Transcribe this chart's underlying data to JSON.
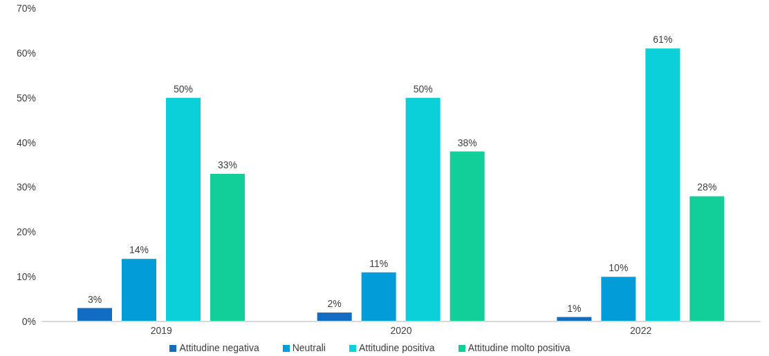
{
  "chart_data": {
    "type": "bar",
    "categories": [
      "2019",
      "2020",
      "2022"
    ],
    "series": [
      {
        "name": "Attitudine negativa",
        "color": "#116cc4",
        "values": [
          3,
          2,
          1
        ],
        "value_labels": [
          "3%",
          "2%",
          "1%"
        ]
      },
      {
        "name": "Neutrali",
        "color": "#029dd8",
        "values": [
          14,
          11,
          10
        ],
        "value_labels": [
          "14%",
          "11%",
          "10%"
        ]
      },
      {
        "name": "Attitudine positiva",
        "color": "#0bd0da",
        "values": [
          50,
          50,
          61
        ],
        "value_labels": [
          "50%",
          "50%",
          "61%"
        ]
      },
      {
        "name": "Attitudine molto positiva",
        "color": "#12ce99",
        "values": [
          33,
          38,
          28
        ],
        "value_labels": [
          "33%",
          "38%",
          "28%"
        ]
      }
    ],
    "ylim": [
      0,
      70
    ],
    "yticks": [
      {
        "value": 0,
        "label": "0%"
      },
      {
        "value": 10,
        "label": "10%"
      },
      {
        "value": 20,
        "label": "20%"
      },
      {
        "value": 30,
        "label": "30%"
      },
      {
        "value": 40,
        "label": "40%"
      },
      {
        "value": 50,
        "label": "50%"
      },
      {
        "value": 60,
        "label": "60%"
      },
      {
        "value": 70,
        "label": "70%"
      }
    ],
    "legend": "bottom",
    "grid": false
  }
}
